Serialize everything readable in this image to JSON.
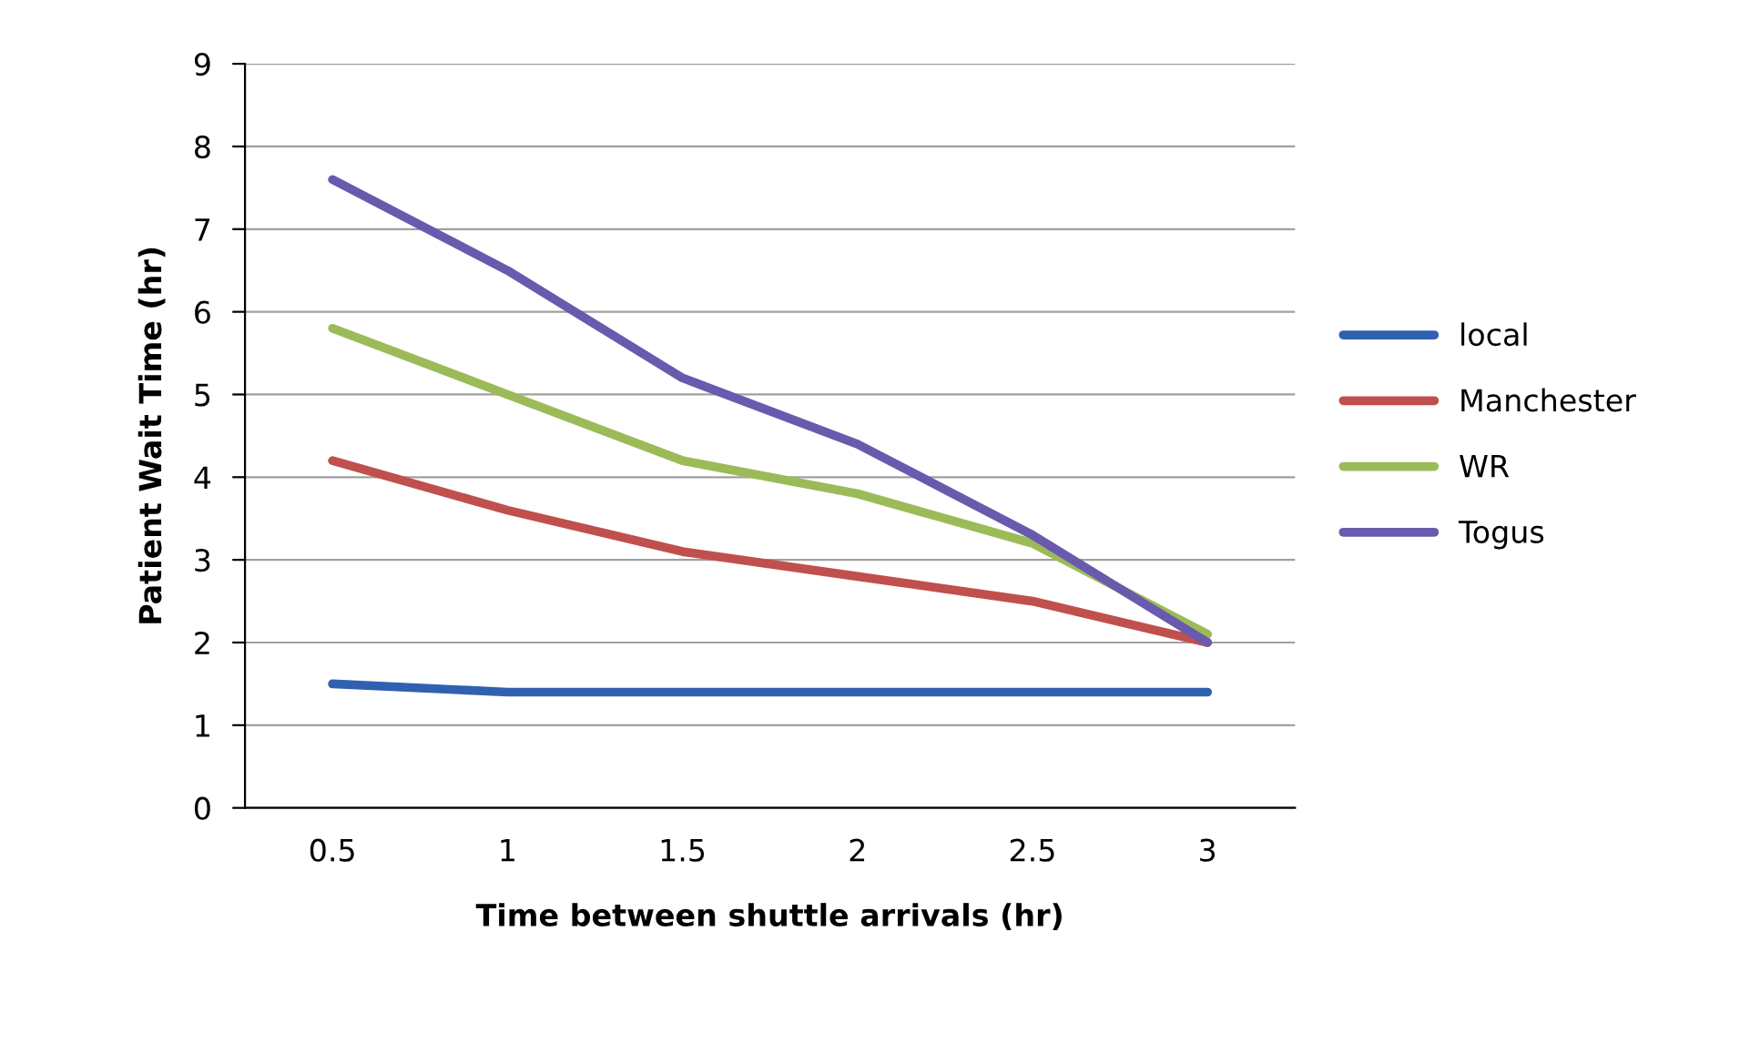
{
  "chart_data": {
    "type": "line",
    "xlabel": "Time between shuttle arrivals (hr)",
    "ylabel": "Patient Wait Time (hr)",
    "categories": [
      "0.5",
      "1",
      "1.5",
      "2",
      "2.5",
      "3"
    ],
    "series": [
      {
        "name": "local",
        "color": "#3060b0",
        "values": [
          1.5,
          1.4,
          1.4,
          1.4,
          1.4,
          1.4
        ]
      },
      {
        "name": "Manchester",
        "color": "#c0504d",
        "values": [
          4.2,
          3.6,
          3.1,
          2.8,
          2.5,
          2.0
        ]
      },
      {
        "name": "WR",
        "color": "#9bbb59",
        "values": [
          5.8,
          5.0,
          4.2,
          3.8,
          3.2,
          2.1
        ]
      },
      {
        "name": "Togus",
        "color": "#6a5aad",
        "values": [
          7.6,
          6.5,
          5.2,
          4.4,
          3.3,
          2.0
        ]
      }
    ],
    "ylim": [
      0,
      9
    ],
    "yticks": [
      0,
      1,
      2,
      3,
      4,
      5,
      6,
      7,
      8,
      9
    ],
    "grid": "y",
    "legend": "right",
    "marker": "none",
    "line_style": "solid"
  }
}
